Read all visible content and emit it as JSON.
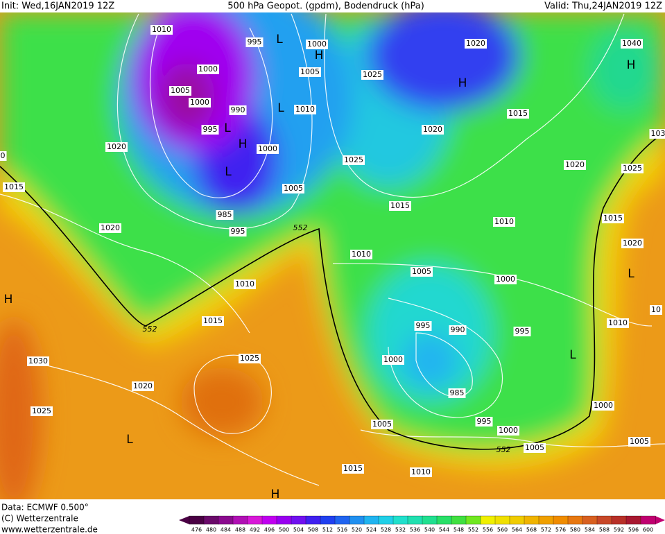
{
  "header": {
    "init": "Init: Wed,16JAN2019 12Z",
    "title": "500 hPa Geopot. (gpdm), Bodendruck (hPa)",
    "valid": "Valid: Thu,24JAN2019 12Z"
  },
  "footer": {
    "data": "Data: ECMWF  0.500°",
    "copyright": "(C) Wetterzentrale",
    "url": "www.wetterzentrale.de"
  },
  "colorbar": {
    "ticks": [
      476,
      480,
      484,
      488,
      492,
      496,
      500,
      504,
      508,
      512,
      516,
      520,
      524,
      528,
      532,
      536,
      540,
      544,
      548,
      552,
      556,
      560,
      564,
      568,
      572,
      576,
      580,
      584,
      588,
      592,
      596,
      600
    ],
    "colors": [
      "#4a0044",
      "#6a0a6a",
      "#8a0a8e",
      "#b010b4",
      "#d818d8",
      "#c000f0",
      "#9800f0",
      "#7010f0",
      "#4020f0",
      "#2040f0",
      "#2064f0",
      "#2090f0",
      "#20b4f0",
      "#20d0e8",
      "#20e0cc",
      "#20e0b0",
      "#20e090",
      "#28e068",
      "#40e040",
      "#70e820",
      "#f0f000",
      "#f0e000",
      "#f0cc00",
      "#f0b400",
      "#f0a000",
      "#f08c00",
      "#e87810",
      "#d86020",
      "#c84828",
      "#b83028",
      "#a81830",
      "#c00070"
    ]
  },
  "pressure_labels": [
    "1010",
    "995",
    "1000",
    "1000",
    "1005",
    "1005",
    "1000",
    "990",
    "1010",
    "995",
    "1000",
    "1020",
    "1025",
    "1025",
    "1020",
    "1040",
    "1015",
    "1020",
    "1020",
    "1025",
    "103",
    "1015",
    "1005",
    "985",
    "995",
    "1020",
    "1015",
    "1010",
    "1015",
    "1020",
    "1010",
    "1005",
    "1000",
    "1010",
    "1015",
    "995",
    "990",
    "995",
    "1010",
    "1030",
    "1025",
    "1000",
    "1020",
    "985",
    "1025",
    "1005",
    "995",
    "1000",
    "1000",
    "1005",
    "1005",
    "1015",
    "1010",
    "0",
    "10"
  ],
  "contour_labels": [
    "552",
    "552",
    "552"
  ],
  "pressure_centers": [
    "L",
    "H",
    "H",
    "H",
    "L",
    "L",
    "H",
    "L",
    "H",
    "L",
    "L",
    "L",
    "H"
  ]
}
